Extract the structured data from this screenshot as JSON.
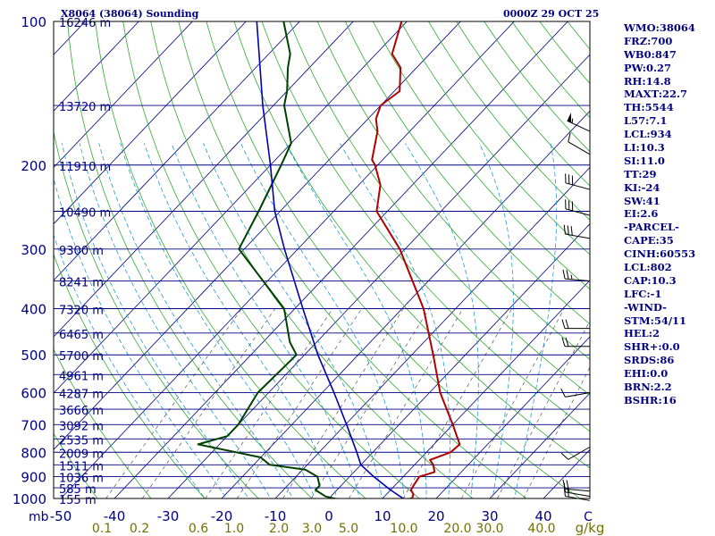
{
  "header": {
    "station": "X8064 (38064) Sounding",
    "valid_time": "0000Z 29 OCT 25"
  },
  "stats": [
    "WMO:38064",
    "FRZ:700",
    "WB0:847",
    "PW:0.27",
    "RH:14.8",
    "MAXT:22.7",
    "TH:5544",
    "L57:7.1",
    "LCL:934",
    "LI:10.3",
    "SI:11.0",
    "TT:29",
    "KI:-24",
    "SW:41",
    "EI:2.6",
    "-PARCEL-",
    "CAPE:35",
    "CINH:60553",
    "LCL:802",
    "CAP:10.3",
    "LFC:-1",
    "-WIND-",
    "STM:54/11",
    "HEL:2",
    "SHR+:0.0",
    "SRDS:86",
    "EHI:0.0",
    "BRN:2.2",
    "BSHR:16"
  ],
  "colors": {
    "isobar": "#000080",
    "isotherm": "#000080",
    "dry_adiabat": "#33aa33",
    "moist_adiabat": "#2299dd",
    "mixing_ratio": "#555555",
    "temperature": "#b00000",
    "dewpoint": "#004000",
    "parcel": "#0000b0",
    "label_blue": "#000080",
    "label_olive": "#707000"
  },
  "chart_data": {
    "type": "skew-t",
    "y_scale": "log-pressure",
    "y_unit": "mb",
    "x_unit": "C",
    "pressure_ticks": [
      100,
      200,
      300,
      400,
      500,
      600,
      700,
      800,
      900,
      1000
    ],
    "temperature_ticks": [
      -50,
      -40,
      -30,
      -20,
      -10,
      0,
      10,
      20,
      30,
      40
    ],
    "mixing_ratio_unit": "g/kg",
    "mixing_ratio_ticks": [
      "0.1",
      "0.2",
      "0.6",
      "1.0",
      "2.0",
      "3.0",
      "5.0",
      "10.0",
      "20.0",
      "30.0",
      "40.0"
    ],
    "height_labels": [
      {
        "p": 100,
        "label": "16246 m"
      },
      {
        "p": 150,
        "label": "13720 m"
      },
      {
        "p": 200,
        "label": "11910 m"
      },
      {
        "p": 250,
        "label": "10490 m"
      },
      {
        "p": 300,
        "label": "9300 m"
      },
      {
        "p": 350,
        "label": "8241 m"
      },
      {
        "p": 400,
        "label": "7320 m"
      },
      {
        "p": 450,
        "label": "6465 m"
      },
      {
        "p": 500,
        "label": "5700 m"
      },
      {
        "p": 550,
        "label": "4961 m"
      },
      {
        "p": 600,
        "label": "4287 m"
      },
      {
        "p": 650,
        "label": "3666 m"
      },
      {
        "p": 700,
        "label": "3092 m"
      },
      {
        "p": 750,
        "label": "2535 m"
      },
      {
        "p": 800,
        "label": "2009 m"
      },
      {
        "p": 850,
        "label": "1511 m"
      },
      {
        "p": 900,
        "label": "1036 m"
      },
      {
        "p": 950,
        "label": "585 m"
      },
      {
        "p": 1000,
        "label": "155 m"
      }
    ],
    "series": [
      {
        "key": "temperature",
        "points": [
          {
            "p": 1018,
            "t": 9.5
          },
          {
            "p": 1000,
            "t": 15.5
          },
          {
            "p": 980,
            "t": 15.0
          },
          {
            "p": 960,
            "t": 13.8
          },
          {
            "p": 940,
            "t": 13.5
          },
          {
            "p": 900,
            "t": 13.0
          },
          {
            "p": 880,
            "t": 15.0
          },
          {
            "p": 850,
            "t": 13.5
          },
          {
            "p": 830,
            "t": 12.0
          },
          {
            "p": 800,
            "t": 14.5
          },
          {
            "p": 770,
            "t": 14.8
          },
          {
            "p": 700,
            "t": 10.0
          },
          {
            "p": 600,
            "t": 2.0
          },
          {
            "p": 500,
            "t": -6.0
          },
          {
            "p": 400,
            "t": -16.0
          },
          {
            "p": 300,
            "t": -31.0
          },
          {
            "p": 250,
            "t": -42.0
          },
          {
            "p": 220,
            "t": -46.0
          },
          {
            "p": 200,
            "t": -50.5
          },
          {
            "p": 195,
            "t": -52.0
          },
          {
            "p": 170,
            "t": -56.0
          },
          {
            "p": 160,
            "t": -58.5
          },
          {
            "p": 150,
            "t": -60.0
          },
          {
            "p": 140,
            "t": -59.0
          },
          {
            "p": 125,
            "t": -63.0
          },
          {
            "p": 117,
            "t": -67.0
          },
          {
            "p": 100,
            "t": -71.0
          }
        ]
      },
      {
        "key": "dewpoint",
        "points": [
          {
            "p": 1018,
            "t": 7.0
          },
          {
            "p": 1010,
            "t": 3.0
          },
          {
            "p": 990,
            "t": -1.0
          },
          {
            "p": 960,
            "t": -4.0
          },
          {
            "p": 940,
            "t": -4.0
          },
          {
            "p": 900,
            "t": -6.0
          },
          {
            "p": 870,
            "t": -9.5
          },
          {
            "p": 850,
            "t": -17.0
          },
          {
            "p": 820,
            "t": -20.0
          },
          {
            "p": 770,
            "t": -34.0
          },
          {
            "p": 740,
            "t": -30.0
          },
          {
            "p": 700,
            "t": -30.0
          },
          {
            "p": 600,
            "t": -32.0
          },
          {
            "p": 500,
            "t": -31.5
          },
          {
            "p": 470,
            "t": -35.0
          },
          {
            "p": 400,
            "t": -42.0
          },
          {
            "p": 300,
            "t": -61.0
          },
          {
            "p": 250,
            "t": -64.0
          },
          {
            "p": 200,
            "t": -68.0
          },
          {
            "p": 180,
            "t": -70.0
          },
          {
            "p": 150,
            "t": -78.0
          },
          {
            "p": 140,
            "t": -80.0
          },
          {
            "p": 125,
            "t": -84.0
          },
          {
            "p": 117,
            "t": -86.0
          },
          {
            "p": 100,
            "t": -93.0
          }
        ]
      },
      {
        "key": "parcel",
        "points": [
          {
            "p": 1018,
            "t": 15.5
          },
          {
            "p": 960,
            "t": 10.0
          },
          {
            "p": 900,
            "t": 4.5
          },
          {
            "p": 850,
            "t": 0.0
          },
          {
            "p": 800,
            "t": -3.0
          },
          {
            "p": 700,
            "t": -9.8
          },
          {
            "p": 600,
            "t": -17.8
          },
          {
            "p": 500,
            "t": -27.5
          },
          {
            "p": 400,
            "t": -38.5
          },
          {
            "p": 300,
            "t": -52.5
          },
          {
            "p": 250,
            "t": -61.0
          },
          {
            "p": 200,
            "t": -70.0
          },
          {
            "p": 150,
            "t": -82.0
          },
          {
            "p": 100,
            "t": -98.0
          }
        ]
      }
    ],
    "winds": [
      {
        "p": 1010,
        "dir": 280,
        "kt": 20
      },
      {
        "p": 990,
        "dir": 280,
        "kt": 15
      },
      {
        "p": 965,
        "dir": 275,
        "kt": 20
      },
      {
        "p": 780,
        "dir": 240,
        "kt": 10
      },
      {
        "p": 600,
        "dir": 260,
        "kt": 10
      },
      {
        "p": 480,
        "dir": 270,
        "kt": 20
      },
      {
        "p": 440,
        "dir": 270,
        "kt": 20
      },
      {
        "p": 350,
        "dir": 275,
        "kt": 25
      },
      {
        "p": 285,
        "dir": 280,
        "kt": 30
      },
      {
        "p": 255,
        "dir": 285,
        "kt": 30
      },
      {
        "p": 225,
        "dir": 285,
        "kt": 30
      },
      {
        "p": 190,
        "dir": 300,
        "kt": 10
      },
      {
        "p": 170,
        "dir": 295,
        "kt": 55
      }
    ]
  }
}
